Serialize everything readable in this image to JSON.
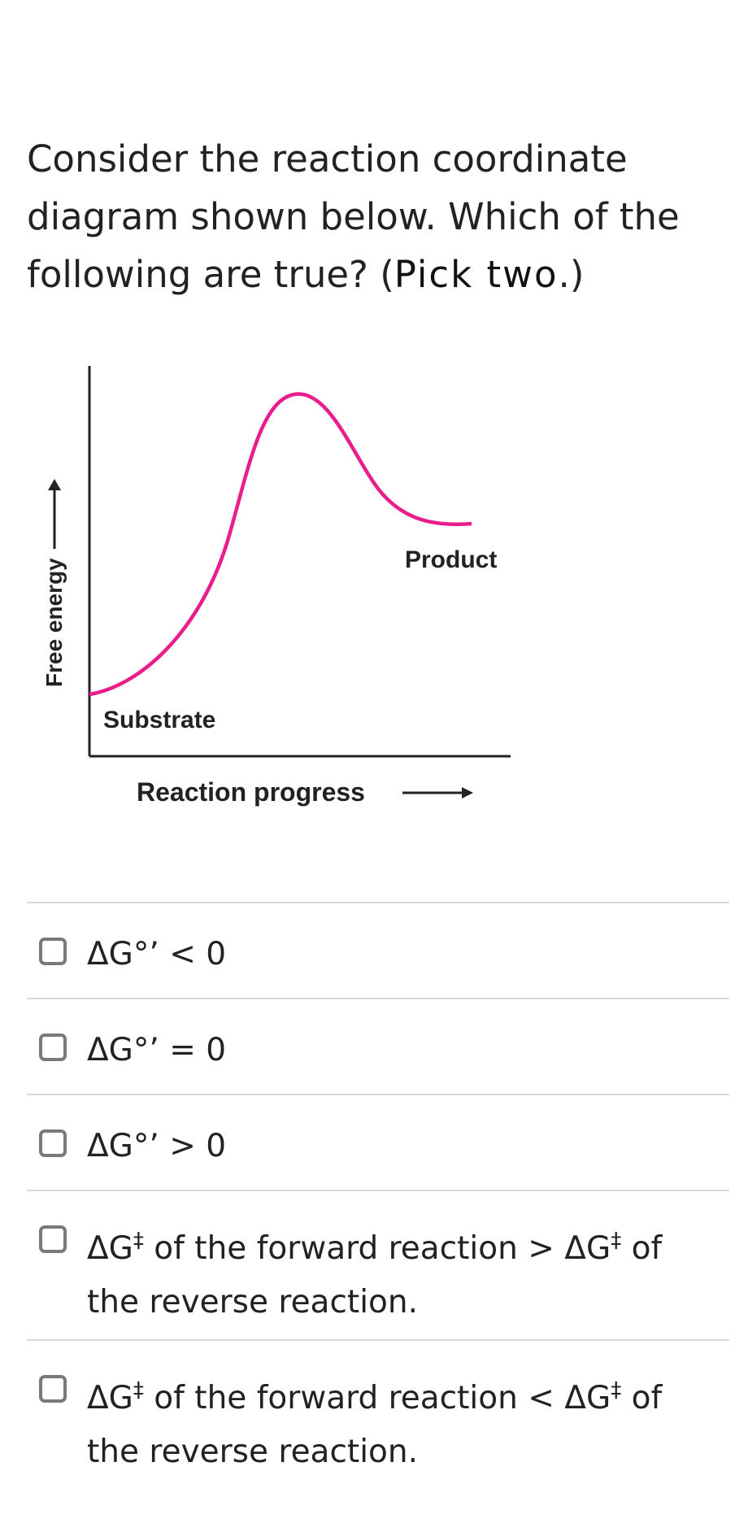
{
  "question": {
    "text_main": "Consider the reaction coordinate diagram shown below. Which of the following are true? (",
    "text_emphasis": "Pick two",
    "text_end": ".)"
  },
  "diagram": {
    "y_axis_label": "Free energy",
    "x_axis_label": "Reaction progress",
    "substrate_label": "Substrate",
    "product_label": "Product",
    "curve_color": "#e91e8c",
    "axis_color": "#222222"
  },
  "options": [
    {
      "text": "ΔG°’ < 0"
    },
    {
      "text": "ΔG°’ = 0"
    },
    {
      "text": "ΔG°’ > 0"
    },
    {
      "prefix": "ΔG",
      "dagger": "‡",
      "middle": " of the forward reaction > ΔG",
      "dagger2": "‡",
      "suffix": " of the reverse reaction."
    },
    {
      "prefix": "ΔG",
      "dagger": "‡",
      "middle": " of the forward reaction < ΔG",
      "dagger2": "‡",
      "suffix": " of the reverse reaction."
    }
  ]
}
